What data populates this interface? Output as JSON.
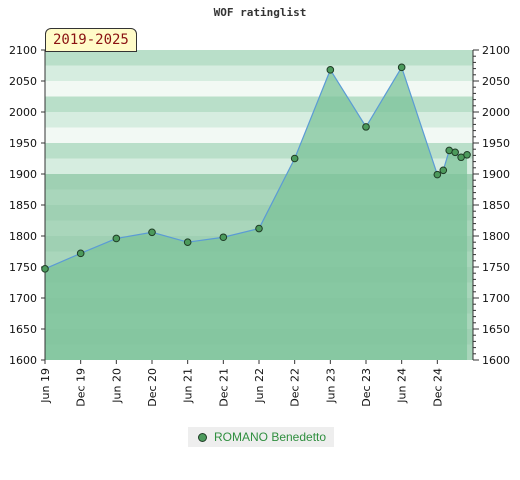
{
  "chart_data": {
    "type": "area",
    "title": "WOF ratinglist",
    "period_label": "2019-2025",
    "ylim": [
      1600,
      2100
    ],
    "yticks": [
      1600,
      1650,
      1700,
      1750,
      1800,
      1850,
      1900,
      1950,
      2000,
      2050,
      2100
    ],
    "xlim": [
      "2019-06",
      "2025-06"
    ],
    "xticks": [
      {
        "date": "2019-06",
        "label": "Jun 19"
      },
      {
        "date": "2019-12",
        "label": "Dec 19"
      },
      {
        "date": "2020-06",
        "label": "Jun 20"
      },
      {
        "date": "2020-12",
        "label": "Dec 20"
      },
      {
        "date": "2021-06",
        "label": "Jun 21"
      },
      {
        "date": "2021-12",
        "label": "Dec 21"
      },
      {
        "date": "2022-06",
        "label": "Jun 22"
      },
      {
        "date": "2022-12",
        "label": "Dec 22"
      },
      {
        "date": "2023-06",
        "label": "Jun 23"
      },
      {
        "date": "2023-12",
        "label": "Dec 23"
      },
      {
        "date": "2024-06",
        "label": "Jun 24"
      },
      {
        "date": "2024-12",
        "label": "Dec 24"
      }
    ],
    "series": [
      {
        "name": "ROMANO Benedetto",
        "points": [
          {
            "date": "2019-06",
            "value": 1747
          },
          {
            "date": "2019-12",
            "value": 1772
          },
          {
            "date": "2020-06",
            "value": 1796
          },
          {
            "date": "2020-12",
            "value": 1806
          },
          {
            "date": "2021-06",
            "value": 1790
          },
          {
            "date": "2021-12",
            "value": 1798
          },
          {
            "date": "2022-06",
            "value": 1812
          },
          {
            "date": "2022-12",
            "value": 1925
          },
          {
            "date": "2023-06",
            "value": 2068
          },
          {
            "date": "2023-12",
            "value": 1976
          },
          {
            "date": "2024-06",
            "value": 2072
          },
          {
            "date": "2024-12",
            "value": 1899
          },
          {
            "date": "2025-01",
            "value": 1906
          },
          {
            "date": "2025-02",
            "value": 1938
          },
          {
            "date": "2025-03",
            "value": 1935
          },
          {
            "date": "2025-04",
            "value": 1927
          },
          {
            "date": "2025-05",
            "value": 1931
          }
        ]
      }
    ],
    "legend": "bottom-center",
    "colors": {
      "fill": "#7cc39a",
      "line": "#5b9bd5",
      "marker": "#4c9a5c",
      "band_light": "#f2f9f4",
      "band_mid": "#d6ede0",
      "band_dark": "#b9dfc9"
    }
  }
}
